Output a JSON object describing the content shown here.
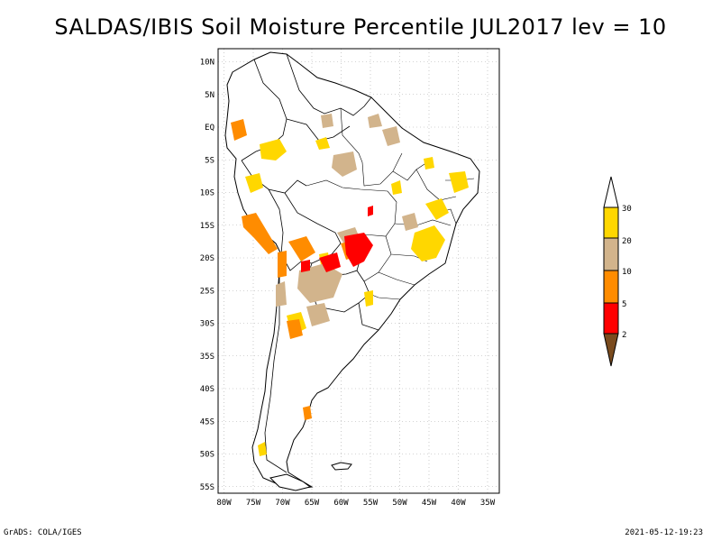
{
  "title": "SALDAS/IBIS Soil Moisture Percentile JUL2017 lev = 10",
  "footer": {
    "left": "GrADS: COLA/IGES",
    "right": "2021-05-12-19:23"
  },
  "map": {
    "lat_labels": [
      "10N",
      "5N",
      "EQ",
      "5S",
      "10S",
      "15S",
      "20S",
      "25S",
      "30S",
      "35S",
      "40S",
      "45S",
      "50S",
      "55S"
    ],
    "lat_values": [
      10,
      5,
      0,
      -5,
      -10,
      -15,
      -20,
      -25,
      -30,
      -35,
      -40,
      -45,
      -50,
      -55
    ],
    "lon_labels": [
      "80W",
      "75W",
      "70W",
      "65W",
      "60W",
      "55W",
      "50W",
      "45W",
      "40W",
      "35W"
    ],
    "lon_values": [
      -80,
      -75,
      -70,
      -65,
      -60,
      -55,
      -50,
      -45,
      -40,
      -35
    ],
    "lat_range": [
      -56,
      12
    ],
    "lon_range": [
      -81,
      -33
    ],
    "grid": "dotted",
    "land_fill": "#ffffff",
    "coast_color": "#000000"
  },
  "legend": {
    "colors": [
      "#7a4b1e",
      "#ff0000",
      "#ff8c00",
      "#d2b48c",
      "#ffd700",
      "#ffffff"
    ],
    "labels": [
      "2",
      "5",
      "10",
      "20",
      "30"
    ]
  },
  "colors": {
    "p2_5": "#ff0000",
    "p5_10": "#ff8c00",
    "p10_20": "#d2b48c",
    "p20_30": "#ffd700"
  }
}
